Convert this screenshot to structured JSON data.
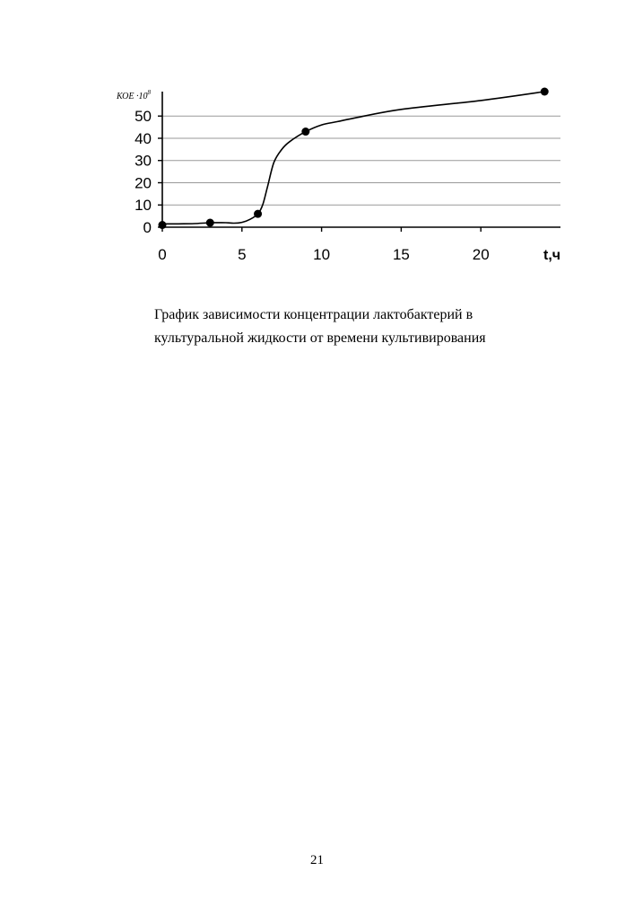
{
  "chart_data": {
    "type": "line",
    "x": [
      0,
      3,
      6,
      9,
      24
    ],
    "y": [
      1,
      2,
      6,
      43,
      61
    ],
    "curve": [
      [
        0,
        1.5
      ],
      [
        1,
        1.5
      ],
      [
        2,
        1.6
      ],
      [
        3,
        2
      ],
      [
        4,
        2
      ],
      [
        4.5,
        1.8
      ],
      [
        5,
        2.2
      ],
      [
        5.5,
        3.5
      ],
      [
        6,
        6
      ],
      [
        6.3,
        10
      ],
      [
        6.6,
        18
      ],
      [
        7,
        29
      ],
      [
        7.5,
        35
      ],
      [
        8,
        38.5
      ],
      [
        9,
        43
      ],
      [
        10,
        46
      ],
      [
        11,
        47.5
      ],
      [
        12,
        49
      ],
      [
        15,
        53
      ],
      [
        20,
        57
      ],
      [
        24,
        61
      ]
    ],
    "xticks": [
      0,
      5,
      10,
      15,
      20
    ],
    "yticks": [
      0,
      10,
      20,
      30,
      40,
      50
    ],
    "xlim": [
      0,
      25
    ],
    "ylim": [
      0,
      61
    ],
    "xlabel": "t,ч",
    "ylabel": "КОЕ ·10",
    "ylabel_exponent": "8",
    "grid": "horizontal",
    "line_color": "#000000",
    "marker_color": "#000000"
  },
  "caption": {
    "line1": "График зависимости концентрации лактобактерий в",
    "line2": "культуральной жидкости от времени культивирования"
  },
  "page_number": "21"
}
